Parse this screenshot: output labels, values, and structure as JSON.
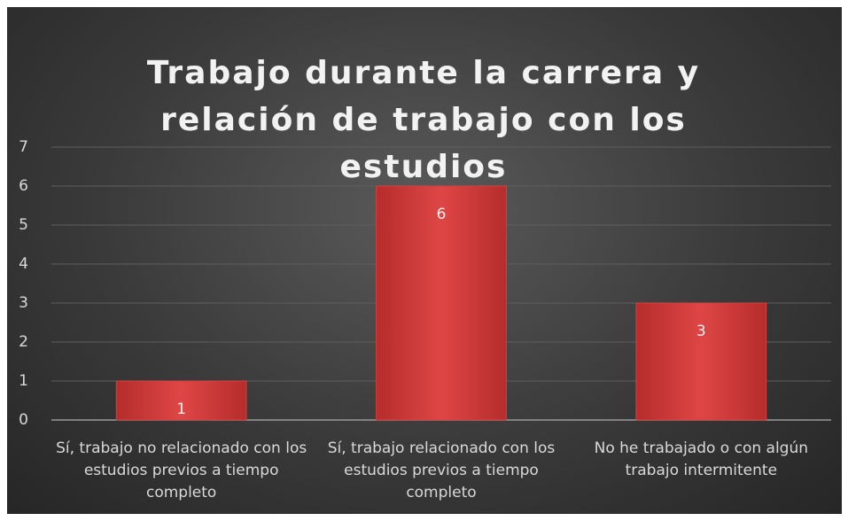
{
  "chart_data": {
    "type": "bar",
    "title": "Trabajo durante la carrera y relación de trabajo con los estudios",
    "categories": [
      "Sí, trabajo no relacionado con los estudios previos a tiempo completo",
      "Sí, trabajo relacionado con los estudios previos a tiempo completo",
      "No he trabajado o con algún trabajo intermitente"
    ],
    "values": [
      1,
      6,
      3
    ],
    "color": "#d9403f",
    "ylim": [
      0,
      7
    ],
    "yticks": [
      0,
      1,
      2,
      3,
      4,
      5,
      6,
      7
    ],
    "grid": true
  }
}
